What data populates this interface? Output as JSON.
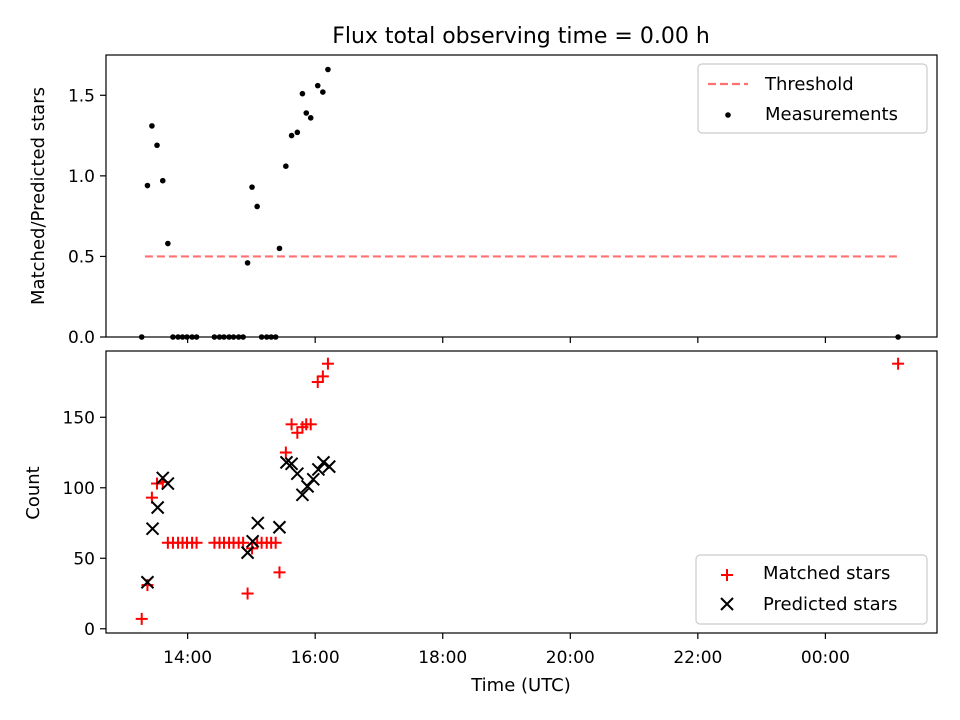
{
  "chart_data": [
    {
      "type": "scatter",
      "title": "Flux total observing time = 0.00 h",
      "xlabel": "",
      "ylabel": "Matched/Predicted stars",
      "ylim": [
        0,
        1.75
      ],
      "yticks": [
        0.0,
        0.5,
        1.0,
        1.5
      ],
      "ytick_labels": [
        "0.0",
        "0.5",
        "1.0",
        "1.5"
      ],
      "x_axis": "time (hours of day, UTC)",
      "xlim": [
        12.72,
        25.75
      ],
      "grid": false,
      "legend_position": "top-right",
      "legend": [
        "Threshold",
        "Measurements"
      ],
      "colors": {
        "threshold": "#ff7070",
        "measurements": "#000000"
      },
      "threshold": {
        "name": "Threshold",
        "x": [
          13.33,
          25.15
        ],
        "y": 0.5
      },
      "series": [
        {
          "name": "Measurements",
          "x": [
            13.28,
            13.37,
            13.44,
            13.52,
            13.61,
            13.69,
            13.77,
            13.85,
            13.92,
            13.99,
            14.07,
            14.14,
            14.42,
            14.5,
            14.57,
            14.65,
            14.72,
            14.8,
            14.87,
            14.94,
            15.01,
            15.09,
            15.16,
            15.24,
            15.31,
            15.38,
            15.44,
            15.54,
            15.63,
            15.72,
            15.8,
            15.86,
            15.93,
            16.04,
            16.12,
            16.2,
            25.14
          ],
          "y": [
            0.0,
            0.94,
            1.31,
            1.19,
            0.97,
            0.58,
            0.0,
            0.0,
            0.0,
            0.0,
            0.0,
            0.0,
            0.0,
            0.0,
            0.0,
            0.0,
            0.0,
            0.0,
            0.0,
            0.46,
            0.93,
            0.81,
            0.0,
            0.0,
            0.0,
            0.0,
            0.55,
            1.06,
            1.25,
            1.27,
            1.51,
            1.39,
            1.36,
            1.56,
            1.52,
            1.66,
            0.0
          ]
        }
      ]
    },
    {
      "type": "scatter",
      "title": "",
      "xlabel": "Time (UTC)",
      "ylabel": "Count",
      "ylim": [
        -3,
        197
      ],
      "yticks": [
        0,
        50,
        100,
        150
      ],
      "ytick_labels": [
        "0",
        "50",
        "100",
        "150"
      ],
      "xlim": [
        12.72,
        25.75
      ],
      "xticks": [
        14,
        16,
        18,
        20,
        22,
        24
      ],
      "xtick_labels": [
        "14:00",
        "16:00",
        "18:00",
        "20:00",
        "22:00",
        "00:00"
      ],
      "grid": false,
      "legend_position": "lower-right",
      "legend": [
        "Matched stars",
        "Predicted stars"
      ],
      "colors": {
        "matched": "#ff0000",
        "predicted": "#000000"
      },
      "series": [
        {
          "name": "Matched stars",
          "marker": "+",
          "x": [
            13.28,
            13.37,
            13.44,
            13.52,
            13.61,
            13.69,
            13.77,
            13.85,
            13.92,
            13.99,
            14.07,
            14.14,
            14.42,
            14.5,
            14.57,
            14.65,
            14.72,
            14.8,
            14.87,
            14.94,
            15.01,
            15.09,
            15.16,
            15.24,
            15.31,
            15.38,
            15.44,
            15.54,
            15.63,
            15.72,
            15.8,
            15.86,
            15.93,
            16.04,
            16.12,
            16.2,
            25.14
          ],
          "y": [
            7,
            31,
            93,
            103,
            104,
            61,
            61,
            61,
            61,
            61,
            61,
            61,
            61,
            61,
            61,
            61,
            61,
            61,
            61,
            25,
            57,
            61,
            61,
            61,
            61,
            61,
            40,
            125,
            145,
            139,
            143,
            145,
            145,
            175,
            179,
            188,
            188
          ]
        },
        {
          "name": "Predicted stars",
          "marker": "x",
          "x": [
            13.37,
            13.45,
            13.53,
            13.61,
            13.69,
            14.94,
            15.02,
            15.1,
            15.44,
            15.55,
            15.63,
            15.72,
            15.8,
            15.88,
            15.97,
            16.05,
            16.13,
            16.22
          ],
          "y": [
            33,
            71,
            86,
            107,
            103,
            54,
            62,
            75,
            72,
            118,
            117,
            110,
            95,
            101,
            106,
            113,
            118,
            115
          ]
        }
      ]
    }
  ]
}
